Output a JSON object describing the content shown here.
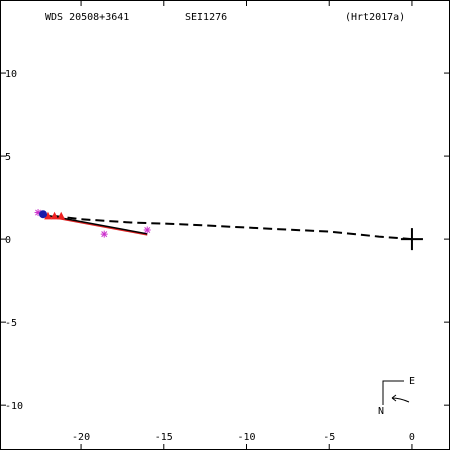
{
  "header": {
    "wds_id": "WDS 20508+3641",
    "discoverer": "SEI1276",
    "reference": "(Hrt2017a)"
  },
  "chart_data": {
    "type": "scatter",
    "xlim": [
      -24.9,
      2.3
    ],
    "ylim": [
      -12.7,
      14.4
    ],
    "x_ticks": [
      -20,
      -15,
      -10,
      -5,
      0
    ],
    "y_ticks": [
      10,
      5,
      0,
      -5,
      -10
    ],
    "x_tick_labels": [
      "-20",
      "-15",
      "-10",
      "-5",
      "0"
    ],
    "y_tick_labels": [
      "10",
      "5",
      "0",
      "-5",
      "-10"
    ],
    "grid": false,
    "primary_star": [
      0,
      0
    ],
    "orbit_curve": [
      [
        -22.5,
        1.5
      ],
      [
        -20.0,
        1.2
      ],
      [
        -17.0,
        1.0
      ],
      [
        -14.0,
        0.9
      ],
      [
        -11.0,
        0.75
      ],
      [
        -8.0,
        0.6
      ],
      [
        -5.0,
        0.45
      ],
      [
        -2.0,
        0.15
      ],
      [
        0.0,
        0.0
      ]
    ],
    "observed_line": [
      [
        -22.5,
        1.5
      ],
      [
        -16.0,
        0.3
      ]
    ],
    "observations_measured": [
      {
        "x": -22.6,
        "y": 1.6,
        "marker": "asterisk",
        "color": "#cc33cc"
      },
      {
        "x": -18.6,
        "y": 0.3,
        "marker": "asterisk",
        "color": "#cc33cc"
      },
      {
        "x": -16.0,
        "y": 0.55,
        "marker": "asterisk",
        "color": "#cc33cc"
      }
    ],
    "observations_interferometric": [
      {
        "x": -22.0,
        "y": 1.4,
        "marker": "triangle",
        "color": "#ee2222"
      },
      {
        "x": -21.6,
        "y": 1.4,
        "marker": "triangle",
        "color": "#ee2222"
      },
      {
        "x": -21.2,
        "y": 1.4,
        "marker": "triangle",
        "color": "#ee2222"
      }
    ],
    "latest_position": {
      "x": -22.3,
      "y": 1.5,
      "marker": "filled-circle",
      "color": "#1a1aaa"
    },
    "orientation": {
      "east_label": "E",
      "north_label": "N"
    }
  }
}
